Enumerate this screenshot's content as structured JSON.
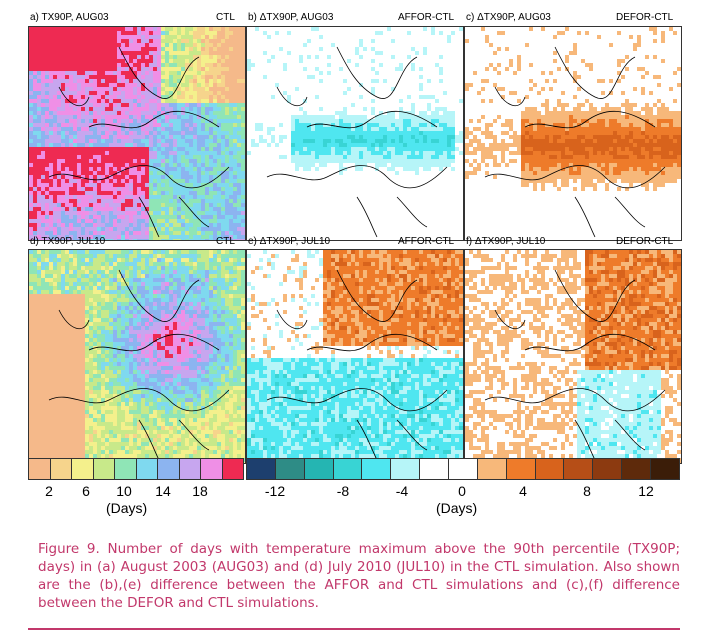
{
  "panels": [
    {
      "id": "a",
      "label": "a) TX90P, AUG03",
      "tag": "CTL",
      "kind": "ctl",
      "seed": 3
    },
    {
      "id": "b",
      "label": "b) ΔTX90P, AUG03",
      "tag": "AFFOR-CTL",
      "kind": "affor_aug",
      "seed": 7
    },
    {
      "id": "c",
      "label": "c) ΔTX90P, AUG03",
      "tag": "DEFOR-CTL",
      "kind": "defor_aug",
      "seed": 11
    },
    {
      "id": "d",
      "label": "d) TX90P, JUL10",
      "tag": "CTL",
      "kind": "ctl_jul",
      "seed": 5
    },
    {
      "id": "e",
      "label": "e) ΔTX90P, JUL10",
      "tag": "AFFOR-CTL",
      "kind": "affor_jul",
      "seed": 13
    },
    {
      "id": "f",
      "label": "f) ΔTX90P, JUL10",
      "tag": "DEFOR-CTL",
      "kind": "defor_jul",
      "seed": 17
    }
  ],
  "colorbar_left": {
    "colors": [
      "#f5b98a",
      "#f6d48c",
      "#f4f08c",
      "#c8e98a",
      "#8fe5b6",
      "#7fd9ef",
      "#8cb4f0",
      "#c7a6ef",
      "#ef8fe6",
      "#ee2a52"
    ],
    "ticks": [
      "2",
      "6",
      "10",
      "14",
      "18"
    ],
    "unit": "(Days)"
  },
  "colorbar_right": {
    "colors": [
      "#1d3f6e",
      "#2e8c86",
      "#25b5b2",
      "#38d4d4",
      "#4fe6f0",
      "#b6f5f8",
      "#ffffff",
      "#ffffff",
      "#f7b87a",
      "#ee7b2a",
      "#d8631c",
      "#b64e17",
      "#8c3a10",
      "#5e2a0b",
      "#3b1d08"
    ],
    "ticks": [
      "-12",
      "-8",
      "-4",
      "0",
      "4",
      "8",
      "12"
    ],
    "unit": "(Days)"
  },
  "caption": "Figure 9. Number of days with temperature maximum above the 90th percentile (TX90P; days) in (a) August 2003 (AUG03) and (d) July 2010 (JUL10) in the CTL simulation. Also shown are the (b),(e) difference between the AFFOR and CTL simulations and (c),(f) difference between the DEFOR and CTL simulations."
}
